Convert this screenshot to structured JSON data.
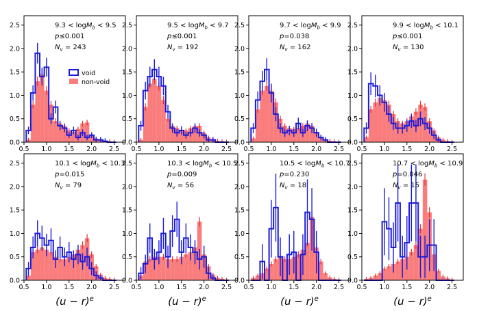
{
  "chart_data": {
    "type": "bar",
    "bin_edges": [
      0.55,
      0.65,
      0.75,
      0.85,
      0.95,
      1.05,
      1.15,
      1.25,
      1.35,
      1.45,
      1.55,
      1.65,
      1.75,
      1.85,
      1.95,
      2.05,
      2.15,
      2.25,
      2.35,
      2.45,
      2.55
    ],
    "xlim": [
      0.5,
      2.75
    ],
    "ylim": [
      0,
      2.7
    ],
    "xticks": [
      "0.5",
      "1.0",
      "1.5",
      "2.0",
      "2.5"
    ],
    "yticks": [
      "0.0",
      "0.5",
      "1.0",
      "1.5",
      "2.0",
      "2.5"
    ],
    "xlabel": "(u − r)",
    "xlabel_sup": "e",
    "legend": {
      "placement": "upper-center",
      "void_label": "void",
      "nonvoid_label": "non-void"
    },
    "colors": {
      "void": "#1a1adb",
      "nonvoid": "#fa7d7d",
      "nonvoid_err": "#e03030"
    },
    "panels": [
      {
        "range_left": "9.3",
        "range_right": "9.5",
        "p_value": "0.001",
        "p_rel": "≤",
        "n_void": "243",
        "nonvoid": [
          0.05,
          0.8,
          1.3,
          1.45,
          1.1,
          0.8,
          0.45,
          0.4,
          0.35,
          0.25,
          0.22,
          0.28,
          0.4,
          0.42,
          0.15,
          0.08,
          0.05,
          0.03,
          0.02,
          0.01
        ],
        "void": [
          0.25,
          1.05,
          1.9,
          1.4,
          1.6,
          0.5,
          0.75,
          0.35,
          0.3,
          0.15,
          0.25,
          0.1,
          0.2,
          0.1,
          0.15,
          0.05,
          0.05,
          0.02,
          0,
          0
        ]
      },
      {
        "range_left": "9.5",
        "range_right": "9.7",
        "p_value": "0.001",
        "p_rel": "≤",
        "n_void": "192",
        "nonvoid": [
          0.05,
          0.75,
          1.25,
          1.35,
          1.2,
          0.9,
          0.5,
          0.35,
          0.3,
          0.25,
          0.25,
          0.3,
          0.35,
          0.35,
          0.2,
          0.1,
          0.05,
          0.03,
          0.02,
          0.01
        ],
        "void": [
          0.35,
          1.1,
          1.4,
          1.55,
          1.4,
          1.2,
          0.65,
          0.3,
          0.2,
          0.25,
          0.15,
          0.2,
          0.3,
          0.2,
          0.15,
          0.05,
          0.05,
          0,
          0,
          0
        ]
      },
      {
        "range_left": "9.7",
        "range_right": "9.9",
        "p_value": "0.038",
        "p_rel": "=",
        "n_void": "162",
        "nonvoid": [
          0.08,
          0.7,
          1.1,
          1.2,
          1.1,
          0.85,
          0.5,
          0.35,
          0.3,
          0.28,
          0.3,
          0.35,
          0.4,
          0.35,
          0.22,
          0.1,
          0.06,
          0.03,
          0.02,
          0.01
        ],
        "void": [
          0.3,
          0.9,
          1.3,
          1.55,
          1.05,
          0.6,
          0.3,
          0.2,
          0.25,
          0.2,
          0.4,
          0.2,
          0.35,
          0.3,
          0.2,
          0.1,
          0.05,
          0,
          0,
          0
        ]
      },
      {
        "range_left": "9.9",
        "range_right": "10.1",
        "p_value": "0.001",
        "p_rel": "≤",
        "n_void": "130",
        "nonvoid": [
          0.1,
          0.7,
          0.85,
          0.95,
          0.9,
          0.8,
          0.6,
          0.45,
          0.4,
          0.45,
          0.55,
          0.65,
          0.8,
          0.75,
          0.45,
          0.25,
          0.1,
          0.05,
          0.03,
          0.01
        ],
        "void": [
          0.3,
          1.25,
          1.2,
          1.0,
          0.85,
          0.6,
          0.4,
          0.3,
          0.3,
          0.35,
          0.45,
          0.35,
          0.5,
          0.4,
          0.3,
          0.15,
          0.05,
          0,
          0,
          0
        ]
      },
      {
        "range_left": "10.1",
        "range_right": "10.3",
        "p_value": "0.015",
        "p_rel": "=",
        "n_void": "79",
        "nonvoid": [
          0.1,
          0.6,
          0.65,
          0.7,
          0.65,
          0.6,
          0.5,
          0.45,
          0.45,
          0.5,
          0.55,
          0.65,
          0.75,
          0.9,
          0.55,
          0.3,
          0.12,
          0.05,
          0.03,
          0.01
        ],
        "void": [
          0.25,
          0.7,
          1.0,
          0.9,
          0.75,
          0.85,
          0.45,
          0.7,
          0.5,
          0.6,
          0.45,
          0.55,
          0.4,
          0.5,
          0.25,
          0.1,
          0.05,
          0,
          0,
          0
        ]
      },
      {
        "range_left": "10.3",
        "range_right": "10.5",
        "p_value": "0.009",
        "p_rel": "=",
        "n_void": "56",
        "nonvoid": [
          0.1,
          0.4,
          0.45,
          0.5,
          0.5,
          0.5,
          0.45,
          0.45,
          0.45,
          0.5,
          0.55,
          0.6,
          0.7,
          1.25,
          0.55,
          0.3,
          0.12,
          0.05,
          0.03,
          0.01
        ],
        "void": [
          0.15,
          0.35,
          0.9,
          0.45,
          0.6,
          1.0,
          0.5,
          1.05,
          1.3,
          0.6,
          0.9,
          0.7,
          0.6,
          0.45,
          0.5,
          0.15,
          0.05,
          0,
          0,
          0
        ]
      },
      {
        "range_left": "10.5",
        "range_right": "10.7",
        "p_value": "0.230",
        "p_rel": "=",
        "n_void": "18",
        "nonvoid": [
          0.05,
          0.1,
          0.15,
          0.25,
          0.35,
          0.45,
          0.5,
          0.45,
          0.45,
          0.5,
          0.55,
          0.65,
          0.8,
          1.35,
          0.7,
          0.4,
          0.15,
          0.06,
          0.03,
          0.01
        ],
        "void": [
          0,
          0,
          0.4,
          0,
          1.1,
          1.55,
          0.5,
          0,
          0.55,
          0.6,
          0,
          0.55,
          1.45,
          1.3,
          0.6,
          0,
          0,
          0,
          0,
          0
        ]
      },
      {
        "range_left": "10.7",
        "range_right": "10.9",
        "p_value": "0.046",
        "p_rel": "=",
        "n_void": "15",
        "nonvoid": [
          0.03,
          0.05,
          0.1,
          0.15,
          0.25,
          0.3,
          0.35,
          0.4,
          0.45,
          0.5,
          0.6,
          0.75,
          1.1,
          2.15,
          1.45,
          0.55,
          0.2,
          0.08,
          0.04,
          0.01
        ],
        "void": [
          0,
          0,
          0,
          0,
          1.25,
          1.1,
          0.7,
          1.65,
          0.5,
          0.8,
          1.65,
          1.65,
          0.5,
          0.5,
          0.75,
          0.75,
          0,
          0,
          0,
          0
        ]
      }
    ]
  }
}
